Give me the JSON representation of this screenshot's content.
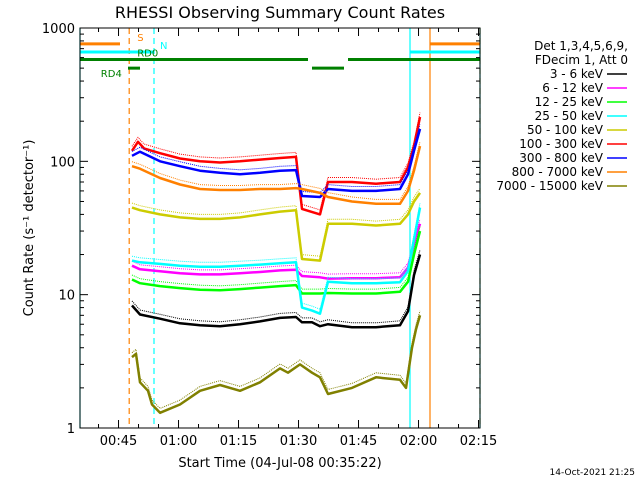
{
  "chart_data": {
    "type": "line",
    "title": "RHESSI Observing Summary Count Rates",
    "xlabel": "Start Time (04-Jul-08 00:35:22)",
    "ylabel": "Count Rate (s⁻¹ detector⁻¹)",
    "yscale": "log",
    "ylim": [
      1,
      1000
    ],
    "xlim_minutes": [
      0,
      100
    ],
    "x_tick_labels": [
      "00:45",
      "01:00",
      "01:15",
      "01:30",
      "01:45",
      "02:00",
      "02:15"
    ],
    "x_tick_minutes": [
      9.63,
      24.63,
      39.63,
      54.63,
      69.63,
      84.63,
      99.63
    ],
    "y_tick_labels": [
      "1",
      "10",
      "100",
      "1000"
    ],
    "y_tick_values": [
      1,
      10,
      100,
      1000
    ],
    "legend": {
      "header": [
        "Det 1,3,4,5,6,9,",
        "FDecim 1, Att 0"
      ],
      "position": "top-right"
    },
    "series": [
      {
        "name": "3 - 6 keV",
        "color": "#000000",
        "points": [
          [
            13,
            8.3
          ],
          [
            15,
            7.1
          ],
          [
            20,
            6.6
          ],
          [
            25,
            6.1
          ],
          [
            30,
            5.9
          ],
          [
            35,
            5.8
          ],
          [
            40,
            6.0
          ],
          [
            45,
            6.3
          ],
          [
            50,
            6.7
          ],
          [
            54,
            6.8
          ],
          [
            55.5,
            6.2
          ],
          [
            58,
            6.2
          ],
          [
            60,
            5.8
          ],
          [
            62,
            6.0
          ],
          [
            68,
            5.7
          ],
          [
            74,
            5.7
          ],
          [
            80,
            5.9
          ],
          [
            82,
            7.5
          ],
          [
            83.5,
            14
          ],
          [
            85,
            20
          ]
        ]
      },
      {
        "name": "6 - 12 keV",
        "color": "#ff00ff",
        "points": [
          [
            13,
            16.5
          ],
          [
            15,
            15.5
          ],
          [
            20,
            15
          ],
          [
            25,
            14.5
          ],
          [
            30,
            14.2
          ],
          [
            35,
            14.2
          ],
          [
            40,
            14.5
          ],
          [
            45,
            14.8
          ],
          [
            50,
            15.2
          ],
          [
            54,
            15.4
          ],
          [
            55.5,
            13.8
          ],
          [
            60,
            13.5
          ],
          [
            62,
            13.2
          ],
          [
            68,
            13.3
          ],
          [
            74,
            13.3
          ],
          [
            80,
            13.5
          ],
          [
            82,
            16
          ],
          [
            83.5,
            24
          ],
          [
            85,
            34
          ]
        ]
      },
      {
        "name": "12 - 25 keV",
        "color": "#00ff00",
        "points": [
          [
            13,
            13
          ],
          [
            15,
            12.2
          ],
          [
            20,
            11.6
          ],
          [
            25,
            11.2
          ],
          [
            30,
            10.9
          ],
          [
            35,
            10.8
          ],
          [
            40,
            11
          ],
          [
            45,
            11.3
          ],
          [
            50,
            11.6
          ],
          [
            54,
            11.8
          ],
          [
            55.5,
            10.2
          ],
          [
            60,
            10.2
          ],
          [
            62,
            10.3
          ],
          [
            68,
            10.2
          ],
          [
            74,
            10.2
          ],
          [
            80,
            10.5
          ],
          [
            82,
            12.5
          ],
          [
            83.5,
            20
          ],
          [
            85,
            30
          ]
        ]
      },
      {
        "name": "25 - 50 keV",
        "color": "#00ffff",
        "points": [
          [
            13,
            18
          ],
          [
            15,
            17.5
          ],
          [
            20,
            17
          ],
          [
            25,
            16.5
          ],
          [
            30,
            16.2
          ],
          [
            35,
            16.2
          ],
          [
            40,
            16.5
          ],
          [
            45,
            16.8
          ],
          [
            50,
            17.2
          ],
          [
            54,
            17.5
          ],
          [
            55.5,
            8.0
          ],
          [
            58,
            7.6
          ],
          [
            60,
            7.2
          ],
          [
            62,
            12.5
          ],
          [
            68,
            12.2
          ],
          [
            74,
            12.2
          ],
          [
            80,
            12.4
          ],
          [
            82,
            15
          ],
          [
            83.5,
            26
          ],
          [
            85,
            45
          ]
        ]
      },
      {
        "name": "50 - 100 keV",
        "color": "#cccc00",
        "points": [
          [
            13,
            45
          ],
          [
            15,
            43
          ],
          [
            20,
            40
          ],
          [
            25,
            38
          ],
          [
            30,
            37
          ],
          [
            35,
            37
          ],
          [
            40,
            38
          ],
          [
            45,
            40
          ],
          [
            50,
            42
          ],
          [
            54,
            43
          ],
          [
            55.5,
            18.5
          ],
          [
            60,
            18
          ],
          [
            62,
            34
          ],
          [
            68,
            34
          ],
          [
            74,
            33
          ],
          [
            80,
            34
          ],
          [
            82,
            40
          ],
          [
            83.5,
            50
          ],
          [
            85,
            58
          ]
        ]
      },
      {
        "name": "100 - 300 keV",
        "color": "#ff0000",
        "points": [
          [
            13,
            120
          ],
          [
            14.5,
            140
          ],
          [
            16,
            125
          ],
          [
            20,
            115
          ],
          [
            25,
            105
          ],
          [
            30,
            100
          ],
          [
            35,
            98
          ],
          [
            40,
            100
          ],
          [
            45,
            103
          ],
          [
            50,
            106
          ],
          [
            54,
            108
          ],
          [
            55.5,
            44
          ],
          [
            60,
            40
          ],
          [
            62,
            70
          ],
          [
            68,
            70
          ],
          [
            74,
            68
          ],
          [
            80,
            70
          ],
          [
            82,
            90
          ],
          [
            83.5,
            130
          ],
          [
            85,
            215
          ]
        ]
      },
      {
        "name": "300 - 800 keV",
        "color": "#0000ff",
        "points": [
          [
            13,
            110
          ],
          [
            15,
            118
          ],
          [
            20,
            100
          ],
          [
            25,
            92
          ],
          [
            30,
            85
          ],
          [
            35,
            82
          ],
          [
            40,
            80
          ],
          [
            45,
            82
          ],
          [
            50,
            85
          ],
          [
            54,
            86
          ],
          [
            55.5,
            55
          ],
          [
            60,
            54
          ],
          [
            62,
            62
          ],
          [
            68,
            60
          ],
          [
            74,
            60
          ],
          [
            80,
            62
          ],
          [
            82,
            80
          ],
          [
            83.5,
            120
          ],
          [
            85,
            175
          ]
        ]
      },
      {
        "name": "800 - 7000 keV",
        "color": "#ff8000",
        "points": [
          [
            13,
            92
          ],
          [
            15,
            88
          ],
          [
            20,
            75
          ],
          [
            25,
            67
          ],
          [
            30,
            62
          ],
          [
            35,
            61
          ],
          [
            40,
            61
          ],
          [
            45,
            62
          ],
          [
            50,
            62
          ],
          [
            54,
            63
          ],
          [
            55.5,
            62
          ],
          [
            60,
            58
          ],
          [
            62,
            54
          ],
          [
            68,
            50
          ],
          [
            74,
            48
          ],
          [
            80,
            48
          ],
          [
            82,
            60
          ],
          [
            83.5,
            85
          ],
          [
            85,
            130
          ]
        ]
      },
      {
        "name": "7000 - 15000 keV",
        "color": "#808000",
        "points": [
          [
            13,
            3.4
          ],
          [
            14,
            3.6
          ],
          [
            15,
            2.2
          ],
          [
            17,
            1.9
          ],
          [
            18,
            1.5
          ],
          [
            20,
            1.3
          ],
          [
            25,
            1.5
          ],
          [
            30,
            1.9
          ],
          [
            35,
            2.1
          ],
          [
            40,
            1.9
          ],
          [
            45,
            2.2
          ],
          [
            50,
            2.8
          ],
          [
            52,
            2.6
          ],
          [
            55,
            3.0
          ],
          [
            58,
            2.6
          ],
          [
            60,
            2.4
          ],
          [
            62,
            1.8
          ],
          [
            68,
            2.0
          ],
          [
            74,
            2.4
          ],
          [
            80,
            2.3
          ],
          [
            81.5,
            2.0
          ],
          [
            83,
            4.0
          ],
          [
            84,
            5.5
          ],
          [
            85,
            7.0
          ]
        ]
      }
    ],
    "observing_bars": [
      {
        "label": "S",
        "color": "#ff8000",
        "level": 760,
        "segments": [
          [
            0,
            10
          ],
          [
            87.5,
            100
          ]
        ]
      },
      {
        "label": "N",
        "color": "#00ffff",
        "level": 660,
        "segments": [
          [
            0,
            18.5
          ],
          [
            82.5,
            100
          ]
        ]
      },
      {
        "label": "RD0",
        "color": "#008000",
        "level": 580,
        "segments": [
          [
            0,
            57
          ],
          [
            67,
            100
          ]
        ]
      },
      {
        "label": "RD4",
        "color": "#008000",
        "level": 500,
        "segments": [
          [
            58,
            66
          ],
          [
            12,
            15
          ]
        ]
      }
    ],
    "vertical_markers": [
      {
        "color": "#00ffff",
        "minute": 0,
        "style": "solid"
      },
      {
        "color": "#ff8000",
        "minute": 12.3,
        "style": "dash"
      },
      {
        "color": "#00ffff",
        "minute": 18.5,
        "style": "dash"
      },
      {
        "color": "#00ffff",
        "minute": 82.5,
        "style": "solid"
      },
      {
        "color": "#ff8000",
        "minute": 87.5,
        "style": "solid"
      },
      {
        "color": "#ff8000",
        "minute": 100,
        "style": "dash"
      },
      {
        "color": "#00ffff",
        "minute": 100,
        "style": "solid"
      }
    ],
    "timestamp": "14-Oct-2021 21:25"
  }
}
